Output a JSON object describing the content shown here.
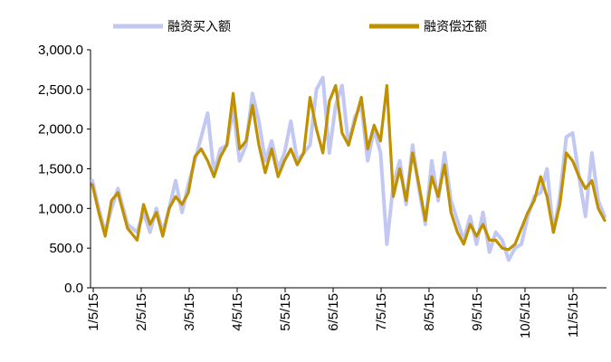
{
  "chart_data": {
    "type": "line",
    "title": "",
    "xlabel": "",
    "ylabel": "",
    "ylim": [
      0,
      3000
    ],
    "y_ticks": [
      "0.0",
      "500.0",
      "1,000.0",
      "1,500.0",
      "2,000.0",
      "2,500.0",
      "3,000.0"
    ],
    "x_ticks": [
      "1/5/15",
      "2/5/15",
      "3/5/15",
      "4/5/15",
      "5/5/15",
      "6/5/15",
      "7/5/15",
      "8/5/15",
      "9/5/15",
      "10/5/15",
      "11/5/15"
    ],
    "x_range": [
      0,
      320
    ],
    "grid": false,
    "legend_position": "top",
    "series": [
      {
        "name": "融资买入额",
        "color": "#c3c8f3",
        "x": [
          0,
          4,
          8,
          12,
          16,
          22,
          28,
          32,
          36,
          40,
          44,
          48,
          52,
          56,
          60,
          64,
          68,
          72,
          76,
          80,
          84,
          88,
          92,
          96,
          100,
          104,
          108,
          112,
          116,
          120,
          124,
          128,
          132,
          136,
          140,
          144,
          148,
          152,
          156,
          160,
          164,
          168,
          172,
          176,
          180,
          184,
          188,
          192,
          196,
          200,
          204,
          208,
          212,
          216,
          220,
          224,
          228,
          232,
          236,
          240,
          244,
          248,
          252,
          256,
          260,
          264,
          268,
          272,
          276,
          280,
          284,
          288,
          292,
          296,
          300,
          304,
          308,
          312,
          316,
          320
        ],
        "values": [
          1350,
          1000,
          700,
          1000,
          1250,
          800,
          700,
          950,
          700,
          1000,
          700,
          1000,
          1350,
          950,
          1300,
          1600,
          1900,
          2200,
          1450,
          1750,
          1800,
          2250,
          1600,
          1800,
          2450,
          2100,
          1600,
          1850,
          1500,
          1700,
          2100,
          1600,
          1700,
          1800,
          2500,
          2650,
          1700,
          2300,
          2550,
          1800,
          2150,
          2300,
          1600,
          2000,
          1700,
          550,
          1300,
          1600,
          1050,
          1800,
          1250,
          800,
          1600,
          1100,
          1700,
          1100,
          850,
          600,
          900,
          550,
          950,
          450,
          700,
          600,
          350,
          500,
          550,
          900,
          1150,
          1200,
          1500,
          700,
          1150,
          1900,
          1950,
          1400,
          900,
          1700,
          1100,
          900
        ],
        "series_note": null
      },
      {
        "name": "融资偿还额",
        "color": "#bf9000",
        "x": [
          0,
          4,
          8,
          12,
          16,
          22,
          28,
          32,
          36,
          40,
          44,
          48,
          52,
          56,
          60,
          64,
          68,
          72,
          76,
          80,
          84,
          88,
          92,
          96,
          100,
          104,
          108,
          112,
          116,
          120,
          124,
          128,
          132,
          136,
          140,
          144,
          148,
          152,
          156,
          160,
          164,
          168,
          172,
          176,
          180,
          184,
          188,
          192,
          196,
          200,
          204,
          208,
          212,
          216,
          220,
          224,
          228,
          232,
          236,
          240,
          244,
          248,
          252,
          256,
          260,
          264,
          268,
          272,
          276,
          280,
          284,
          288,
          292,
          296,
          300,
          304,
          308,
          312,
          316,
          320
        ],
        "values": [
          1300,
          950,
          650,
          1100,
          1200,
          750,
          600,
          1050,
          800,
          950,
          650,
          1000,
          1150,
          1050,
          1200,
          1650,
          1750,
          1600,
          1400,
          1650,
          1800,
          2450,
          1750,
          1850,
          2300,
          1800,
          1450,
          1750,
          1400,
          1600,
          1750,
          1550,
          1700,
          2400,
          2000,
          1700,
          2350,
          2550,
          1950,
          1800,
          2100,
          2400,
          1750,
          2050,
          1850,
          2550,
          1150,
          1500,
          1100,
          1700,
          1300,
          850,
          1400,
          1150,
          1550,
          950,
          700,
          550,
          800,
          650,
          800,
          600,
          600,
          500,
          480,
          550,
          750,
          950,
          1100,
          1400,
          1150,
          700,
          1050,
          1700,
          1600,
          1400,
          1250,
          1350,
          1000,
          850
        ],
        "series_note": null
      }
    ]
  }
}
